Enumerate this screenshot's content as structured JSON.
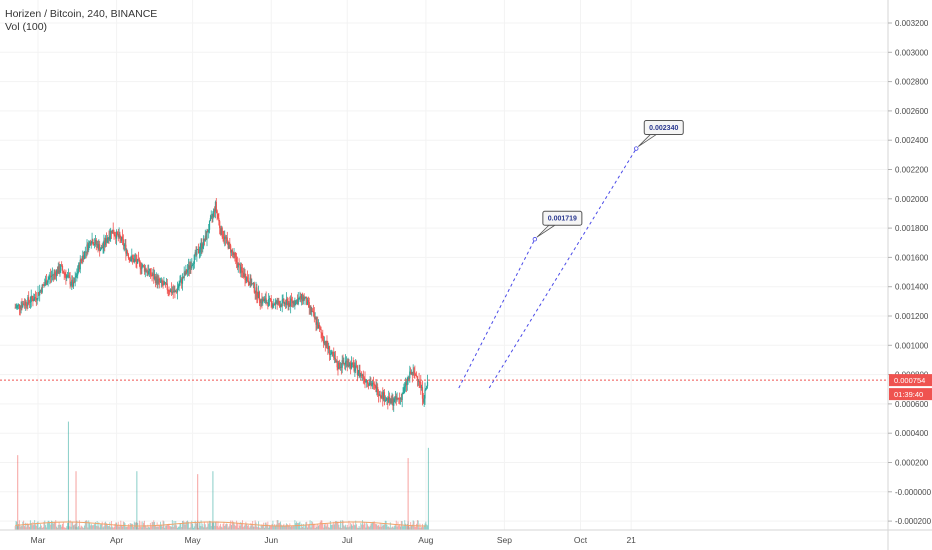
{
  "header": {
    "symbol_line": "Horizen / Bitcoin, 240, BINANCE",
    "indicator_line": "Vol (100)"
  },
  "price_axis": {
    "labels": [
      "0.003200",
      "0.003000",
      "0.002800",
      "0.002600",
      "0.002400",
      "0.002200",
      "0.002000",
      "0.001800",
      "0.001600",
      "0.001400",
      "0.001200",
      "0.001000",
      "0.000800",
      "0.000600",
      "0.000400",
      "0.000200",
      "-0.000000",
      "-0.000200"
    ],
    "current_price": "0.000754",
    "countdown": "01:39:40"
  },
  "time_axis": {
    "labels": [
      "Mar",
      "Apr",
      "May",
      "Jun",
      "Jul",
      "Aug",
      "Sep",
      "Oct",
      "21"
    ]
  },
  "colors": {
    "up": "#26a69a",
    "down": "#ef5350",
    "projection": "#4a4ae8",
    "price_line": "#ef5350"
  },
  "chart_data": {
    "type": "candlestick",
    "title": "Horizen / Bitcoin, 240, BINANCE",
    "ylim": [
      -0.0002,
      0.0033
    ],
    "price_path": [
      {
        "x": "Feb 20",
        "y": 0.00125
      },
      {
        "x": "Feb 28",
        "y": 0.00132
      },
      {
        "x": "Mar 5",
        "y": 0.00145
      },
      {
        "x": "Mar 10",
        "y": 0.00152
      },
      {
        "x": "Mar 15",
        "y": 0.0014
      },
      {
        "x": "Mar 18",
        "y": 0.00158
      },
      {
        "x": "Mar 22",
        "y": 0.00172
      },
      {
        "x": "Mar 26",
        "y": 0.00165
      },
      {
        "x": "Mar 30",
        "y": 0.00178
      },
      {
        "x": "Apr 3",
        "y": 0.00171
      },
      {
        "x": "Apr 6",
        "y": 0.0016
      },
      {
        "x": "Apr 12",
        "y": 0.00152
      },
      {
        "x": "Apr 18",
        "y": 0.00142
      },
      {
        "x": "Apr 24",
        "y": 0.00135
      },
      {
        "x": "Apr 28",
        "y": 0.00148
      },
      {
        "x": "May 2",
        "y": 0.0016
      },
      {
        "x": "May 6",
        "y": 0.00172
      },
      {
        "x": "May 10",
        "y": 0.00195
      },
      {
        "x": "May 12",
        "y": 0.00178
      },
      {
        "x": "May 16",
        "y": 0.00165
      },
      {
        "x": "May 20",
        "y": 0.0015
      },
      {
        "x": "May 24",
        "y": 0.00142
      },
      {
        "x": "May 28",
        "y": 0.0013
      },
      {
        "x": "Jun 2",
        "y": 0.00128
      },
      {
        "x": "Jun 8",
        "y": 0.00128
      },
      {
        "x": "Jun 14",
        "y": 0.00132
      },
      {
        "x": "Jun 18",
        "y": 0.00118
      },
      {
        "x": "Jun 22",
        "y": 0.00102
      },
      {
        "x": "Jun 27",
        "y": 0.00085
      },
      {
        "x": "Jul 1",
        "y": 0.00088
      },
      {
        "x": "Jul 6",
        "y": 0.0008
      },
      {
        "x": "Jul 12",
        "y": 0.0007
      },
      {
        "x": "Jul 18",
        "y": 0.0006
      },
      {
        "x": "Jul 22",
        "y": 0.00063
      },
      {
        "x": "Jul 26",
        "y": 0.0008
      },
      {
        "x": "Jul 29",
        "y": 0.00078
      },
      {
        "x": "Jul 31",
        "y": 0.00063
      },
      {
        "x": "Aug 2",
        "y": 0.000754
      }
    ],
    "volume_spikes": [
      {
        "x": "Feb 21",
        "v": 0.00024
      },
      {
        "x": "Mar 13",
        "v": 0.00047
      },
      {
        "x": "Mar 16",
        "v": 0.00013
      },
      {
        "x": "Apr 9",
        "v": 0.00013
      },
      {
        "x": "May 3",
        "v": 0.00011
      },
      {
        "x": "May 9",
        "v": 0.00013
      },
      {
        "x": "Jul 25",
        "v": 0.00022
      },
      {
        "x": "Aug 2",
        "v": 0.00029
      }
    ],
    "annotations": [
      {
        "label": "0.001719",
        "from": {
          "x": "Aug 14",
          "y": 0.0007
        },
        "to": {
          "x": "Sep 13",
          "y": 0.001719
        }
      },
      {
        "label": "0.002340",
        "from": {
          "x": "Aug 26",
          "y": 0.0007
        },
        "to": {
          "x": "Oct 23",
          "y": 0.00234
        }
      }
    ]
  }
}
